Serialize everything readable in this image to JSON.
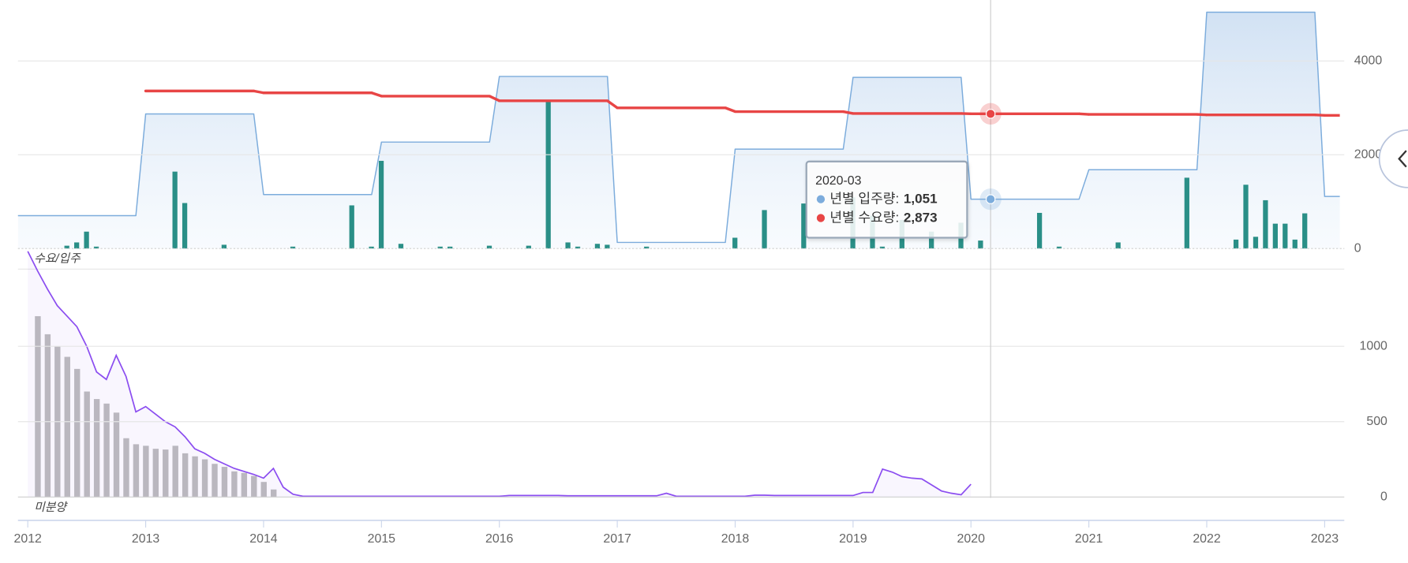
{
  "chart_data": [
    {
      "type": "combo",
      "label": "수요/입주",
      "xlim": [
        "2011-12",
        "2023-03"
      ],
      "ylim": [
        0,
        5300
      ],
      "yticks": [
        0,
        2000,
        4000
      ],
      "series": [
        {
          "name": "년별 입주량",
          "type": "step-area",
          "color": "#7cacdc",
          "x": [
            "2012",
            "2013",
            "2014",
            "2015",
            "2016",
            "2017",
            "2018",
            "2019",
            "2020",
            "2021",
            "2022",
            "2023"
          ],
          "values": [
            700,
            2870,
            1150,
            2270,
            3670,
            130,
            2120,
            3650,
            1051,
            1680,
            5040,
            1110
          ]
        },
        {
          "type": "bar",
          "color": "#2a8f87",
          "x": [
            "2012-05",
            "2012-06",
            "2012-07",
            "2012-08",
            "2013-04",
            "2013-05",
            "2013-09",
            "2014-04",
            "2014-10",
            "2014-12",
            "2015-01",
            "2015-03",
            "2015-07",
            "2015-08",
            "2015-12",
            "2016-04",
            "2016-06",
            "2016-08",
            "2016-09",
            "2016-11",
            "2016-12",
            "2017-04",
            "2018-01",
            "2018-04",
            "2018-08",
            "2019-01",
            "2019-03",
            "2019-04",
            "2019-06",
            "2019-09",
            "2019-12",
            "2020-02",
            "2020-08",
            "2020-10",
            "2021-04",
            "2021-11",
            "2022-04",
            "2022-05",
            "2022-06",
            "2022-07",
            "2022-08",
            "2022-09",
            "2022-10",
            "2022-11"
          ],
          "values": [
            60,
            130,
            360,
            40,
            1640,
            970,
            80,
            40,
            920,
            40,
            1870,
            100,
            40,
            40,
            60,
            60,
            3130,
            130,
            40,
            100,
            80,
            40,
            230,
            820,
            960,
            1090,
            700,
            40,
            610,
            360,
            550,
            170,
            760,
            40,
            130,
            1510,
            190,
            1360,
            250,
            1030,
            530,
            530,
            190,
            750
          ]
        },
        {
          "name": "년별 수요량",
          "type": "step",
          "color": "#e84545",
          "x": [
            "2012",
            "2013",
            "2014",
            "2015",
            "2016",
            "2017",
            "2018",
            "2019",
            "2020",
            "2021",
            "2022",
            "2023"
          ],
          "values": [
            null,
            3360,
            3320,
            3250,
            3150,
            3000,
            2920,
            2880,
            2873,
            2860,
            2850,
            2840
          ]
        }
      ],
      "tooltip": {
        "title": "2020-03",
        "rows": [
          {
            "name": "년별 입주량:",
            "value": "1,051"
          },
          {
            "name": "년별 수요량:",
            "value": "2,873"
          }
        ]
      }
    },
    {
      "type": "combo",
      "label": "미분양",
      "xlim": [
        "2011-12",
        "2023-03"
      ],
      "xticks": [
        2012,
        2013,
        2014,
        2015,
        2016,
        2017,
        2018,
        2019,
        2020,
        2021,
        2022,
        2023
      ],
      "ylim": [
        -155,
        1512
      ],
      "yticks": [
        0,
        500,
        1000
      ],
      "series": [
        {
          "type": "bar",
          "color": "#bdbdbd",
          "x": [
            "2012-02",
            "2012-03",
            "2012-04",
            "2012-05",
            "2012-06",
            "2012-07",
            "2012-08",
            "2012-09",
            "2012-10",
            "2012-11",
            "2012-12",
            "2013-01",
            "2013-02",
            "2013-03",
            "2013-04",
            "2013-05",
            "2013-06",
            "2013-07",
            "2013-08",
            "2013-09",
            "2013-10",
            "2013-11",
            "2013-12",
            "2014-01",
            "2014-02"
          ],
          "values": [
            1200,
            1080,
            1000,
            930,
            850,
            700,
            650,
            620,
            560,
            390,
            350,
            340,
            320,
            315,
            340,
            290,
            270,
            250,
            220,
            200,
            170,
            160,
            140,
            100,
            50
          ]
        },
        {
          "type": "line",
          "color": "#8b4df0",
          "x": [
            "2012-01",
            "2012-02",
            "2012-03",
            "2012-04",
            "2012-05",
            "2012-06",
            "2012-07",
            "2012-08",
            "2012-09",
            "2012-10",
            "2012-11",
            "2012-12",
            "2013-01",
            "2013-02",
            "2013-03",
            "2013-04",
            "2013-05",
            "2013-06",
            "2013-07",
            "2013-08",
            "2013-09",
            "2013-10",
            "2013-11",
            "2013-12",
            "2014-01",
            "2014-02",
            "2014-03",
            "2014-04",
            "2014-05",
            "2014-06",
            "2014-07",
            "2014-08",
            "2014-09",
            "2014-10",
            "2014-11",
            "2014-12",
            "2015-01",
            "2015-02",
            "2015-03",
            "2015-04",
            "2015-05",
            "2015-06",
            "2015-07",
            "2015-08",
            "2015-09",
            "2015-10",
            "2015-11",
            "2015-12",
            "2016-01",
            "2016-02",
            "2016-03",
            "2016-04",
            "2016-05",
            "2016-06",
            "2016-07",
            "2016-08",
            "2016-09",
            "2016-10",
            "2016-11",
            "2016-12",
            "2017-01",
            "2017-02",
            "2017-03",
            "2017-04",
            "2017-05",
            "2017-06",
            "2017-07",
            "2017-08",
            "2017-09",
            "2017-10",
            "2017-11",
            "2017-12",
            "2018-01",
            "2018-02",
            "2018-03",
            "2018-04",
            "2018-05",
            "2018-06",
            "2018-07",
            "2018-08",
            "2018-09",
            "2018-10",
            "2018-11",
            "2018-12",
            "2019-01",
            "2019-02",
            "2019-03",
            "2019-04",
            "2019-05",
            "2019-06",
            "2019-07",
            "2019-08",
            "2019-09",
            "2019-10",
            "2019-11",
            "2019-12",
            "2020-01"
          ],
          "values": [
            1630,
            1500,
            1380,
            1270,
            1200,
            1130,
            1000,
            830,
            780,
            940,
            800,
            565,
            600,
            550,
            500,
            465,
            400,
            320,
            290,
            250,
            220,
            190,
            170,
            150,
            125,
            190,
            65,
            18,
            5,
            5,
            5,
            5,
            5,
            5,
            5,
            5,
            5,
            5,
            5,
            5,
            5,
            5,
            5,
            5,
            5,
            5,
            5,
            5,
            5,
            10,
            10,
            10,
            10,
            10,
            10,
            8,
            8,
            8,
            8,
            8,
            8,
            8,
            8,
            8,
            8,
            25,
            5,
            5,
            5,
            5,
            5,
            5,
            5,
            5,
            12,
            12,
            10,
            10,
            10,
            10,
            10,
            10,
            10,
            10,
            10,
            30,
            30,
            185,
            165,
            135,
            125,
            120,
            80,
            40,
            25,
            15,
            85
          ]
        }
      ]
    }
  ]
}
